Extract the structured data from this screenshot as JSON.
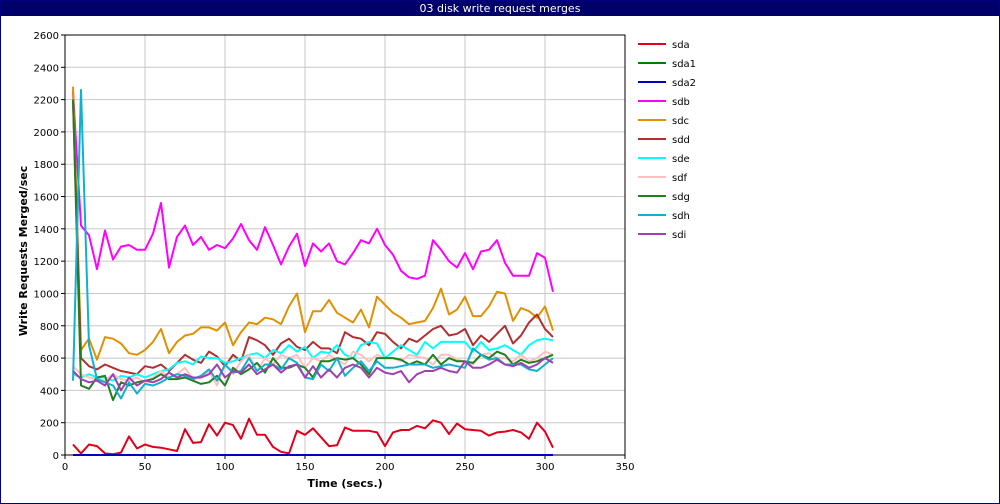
{
  "window": {
    "title": "03 disk write request merges"
  },
  "colors": {
    "title_bg": "#000068",
    "grid": "#c8c8c8",
    "axis": "#000000"
  },
  "chart_data": {
    "type": "line",
    "title": "03 disk write request merges",
    "xlabel": "Time (secs.)",
    "ylabel": "Write Requests Merged/sec",
    "xlim": [
      0,
      350
    ],
    "ylim": [
      0,
      2600
    ],
    "xticks": [
      0,
      50,
      100,
      150,
      200,
      250,
      300,
      350
    ],
    "yticks": [
      0,
      200,
      400,
      600,
      800,
      1000,
      1200,
      1400,
      1600,
      1800,
      2000,
      2200,
      2400,
      2600
    ],
    "grid": true,
    "legend_position": "right",
    "x": [
      5,
      10,
      15,
      20,
      25,
      30,
      35,
      40,
      45,
      50,
      55,
      60,
      65,
      70,
      75,
      80,
      85,
      90,
      95,
      100,
      105,
      110,
      115,
      120,
      125,
      130,
      135,
      140,
      145,
      150,
      155,
      160,
      165,
      170,
      175,
      180,
      185,
      190,
      195,
      200,
      205,
      210,
      215,
      220,
      225,
      230,
      235,
      240,
      245,
      250,
      255,
      260,
      265,
      270,
      275,
      280,
      285,
      290,
      295,
      300,
      305
    ],
    "series": [
      {
        "name": "sda",
        "color": "#e0001c",
        "values": [
          65,
          10,
          65,
          55,
          10,
          5,
          15,
          115,
          40,
          65,
          50,
          45,
          35,
          25,
          160,
          75,
          80,
          190,
          120,
          200,
          185,
          100,
          225,
          125,
          125,
          50,
          20,
          10,
          150,
          125,
          165,
          110,
          55,
          60,
          170,
          150,
          150,
          150,
          140,
          55,
          140,
          155,
          155,
          180,
          165,
          215,
          200,
          130,
          195,
          160,
          155,
          150,
          120,
          140,
          145,
          155,
          140,
          100,
          200,
          145,
          45
        ]
      },
      {
        "name": "sda1",
        "color": "#008000",
        "values": [
          0,
          0,
          0,
          0,
          0,
          0,
          0,
          0,
          0,
          0,
          0,
          0,
          0,
          0,
          0,
          0,
          0,
          0,
          0,
          0,
          0,
          0,
          0,
          0,
          0,
          0,
          0,
          0,
          0,
          0,
          0,
          0,
          0,
          0,
          0,
          0,
          0,
          0,
          0,
          0,
          0,
          0,
          0,
          0,
          0,
          0,
          0,
          0,
          0,
          0,
          0,
          0,
          0,
          0,
          0,
          0,
          0,
          0,
          0,
          0,
          0
        ]
      },
      {
        "name": "sda2",
        "color": "#0000c0",
        "values": [
          0,
          0,
          0,
          0,
          0,
          0,
          0,
          0,
          0,
          0,
          0,
          0,
          0,
          0,
          0,
          0,
          0,
          0,
          0,
          0,
          0,
          0,
          0,
          0,
          0,
          0,
          0,
          0,
          0,
          0,
          0,
          0,
          0,
          0,
          0,
          0,
          0,
          0,
          0,
          0,
          0,
          0,
          0,
          0,
          0,
          0,
          0,
          0,
          0,
          0,
          0,
          0,
          0,
          0,
          0,
          0,
          0,
          0,
          0,
          0,
          0
        ]
      },
      {
        "name": "sdb",
        "color": "#ff00ff",
        "values": [
          2250,
          1420,
          1360,
          1150,
          1390,
          1210,
          1290,
          1300,
          1270,
          1270,
          1370,
          1560,
          1160,
          1350,
          1420,
          1300,
          1350,
          1270,
          1300,
          1280,
          1340,
          1430,
          1330,
          1270,
          1410,
          1300,
          1180,
          1290,
          1370,
          1170,
          1310,
          1260,
          1310,
          1200,
          1180,
          1250,
          1330,
          1310,
          1400,
          1300,
          1240,
          1140,
          1100,
          1090,
          1110,
          1330,
          1270,
          1200,
          1160,
          1250,
          1150,
          1260,
          1270,
          1330,
          1190,
          1110,
          1110,
          1110,
          1250,
          1220,
          1010
        ]
      },
      {
        "name": "sdc",
        "color": "#e09000",
        "values": [
          2280,
          650,
          720,
          590,
          730,
          720,
          690,
          630,
          620,
          650,
          700,
          780,
          630,
          700,
          740,
          750,
          790,
          790,
          770,
          820,
          680,
          760,
          820,
          810,
          850,
          840,
          810,
          920,
          1000,
          760,
          890,
          890,
          960,
          880,
          850,
          820,
          900,
          790,
          980,
          930,
          880,
          850,
          810,
          820,
          830,
          910,
          1030,
          870,
          900,
          980,
          860,
          860,
          920,
          1010,
          1000,
          830,
          910,
          890,
          850,
          920,
          770
        ]
      },
      {
        "name": "sdd",
        "color": "#b03030",
        "values": [
          2200,
          600,
          550,
          530,
          560,
          540,
          520,
          510,
          500,
          550,
          540,
          560,
          520,
          570,
          620,
          590,
          570,
          640,
          610,
          550,
          620,
          580,
          730,
          710,
          680,
          620,
          690,
          720,
          670,
          650,
          700,
          660,
          660,
          630,
          760,
          730,
          720,
          680,
          760,
          750,
          700,
          660,
          720,
          700,
          740,
          780,
          800,
          740,
          750,
          780,
          680,
          740,
          700,
          750,
          800,
          690,
          740,
          820,
          870,
          780,
          730
        ]
      },
      {
        "name": "sde",
        "color": "#00ffff",
        "values": [
          500,
          480,
          500,
          480,
          480,
          460,
          490,
          480,
          500,
          480,
          500,
          520,
          530,
          570,
          580,
          560,
          610,
          600,
          600,
          570,
          580,
          600,
          620,
          630,
          600,
          650,
          630,
          680,
          640,
          670,
          600,
          640,
          630,
          680,
          620,
          600,
          680,
          700,
          690,
          600,
          640,
          680,
          650,
          620,
          700,
          660,
          700,
          700,
          700,
          700,
          640,
          700,
          650,
          660,
          680,
          650,
          620,
          680,
          710,
          720,
          710
        ]
      },
      {
        "name": "sdf",
        "color": "#ffc0c0",
        "values": [
          550,
          500,
          480,
          470,
          460,
          500,
          470,
          460,
          480,
          450,
          480,
          520,
          480,
          500,
          540,
          470,
          480,
          520,
          430,
          560,
          500,
          580,
          620,
          520,
          600,
          560,
          620,
          600,
          620,
          540,
          600,
          580,
          620,
          590,
          560,
          640,
          620,
          580,
          620,
          600,
          600,
          580,
          620,
          610,
          600,
          560,
          620,
          620,
          590,
          580,
          560,
          620,
          630,
          600,
          600,
          580,
          620,
          580,
          600,
          640,
          620
        ]
      },
      {
        "name": "sdg",
        "color": "#208020",
        "values": [
          2200,
          430,
          410,
          480,
          490,
          340,
          450,
          430,
          450,
          460,
          470,
          500,
          470,
          470,
          480,
          460,
          440,
          450,
          490,
          430,
          540,
          500,
          530,
          570,
          510,
          600,
          540,
          540,
          560,
          540,
          480,
          580,
          580,
          600,
          590,
          600,
          560,
          500,
          600,
          600,
          600,
          590,
          560,
          580,
          560,
          620,
          560,
          600,
          580,
          580,
          570,
          620,
          600,
          640,
          620,
          560,
          590,
          570,
          580,
          600,
          620
        ]
      },
      {
        "name": "sdh",
        "color": "#10b0d0",
        "values": [
          460,
          2260,
          680,
          470,
          450,
          430,
          350,
          450,
          380,
          440,
          430,
          450,
          480,
          500,
          490,
          470,
          490,
          530,
          460,
          560,
          510,
          520,
          600,
          520,
          560,
          560,
          530,
          600,
          570,
          480,
          470,
          560,
          520,
          600,
          490,
          540,
          580,
          520,
          580,
          540,
          540,
          550,
          560,
          560,
          560,
          540,
          550,
          560,
          550,
          540,
          660,
          620,
          590,
          600,
          560,
          560,
          560,
          530,
          520,
          560,
          600
        ]
      },
      {
        "name": "sdi",
        "color": "#a040b0",
        "values": [
          520,
          470,
          450,
          460,
          430,
          500,
          400,
          480,
          430,
          460,
          450,
          470,
          510,
          480,
          500,
          480,
          480,
          500,
          560,
          480,
          520,
          510,
          560,
          500,
          530,
          560,
          510,
          550,
          560,
          480,
          550,
          480,
          530,
          480,
          540,
          560,
          540,
          480,
          540,
          510,
          500,
          520,
          450,
          500,
          520,
          520,
          540,
          520,
          510,
          580,
          540,
          540,
          560,
          590,
          560,
          550,
          570,
          540,
          560,
          600,
          570
        ]
      }
    ]
  }
}
